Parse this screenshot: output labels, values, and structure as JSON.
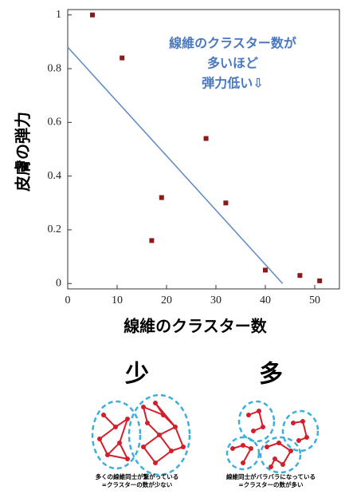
{
  "chart_data": {
    "type": "scatter",
    "x_label": "線維のクラスター数",
    "y_label": "皮膚の弾力",
    "annotation": [
      "線維のクラスター数が",
      "多いほど",
      "弾力低い⇩"
    ],
    "x": [
      5,
      11,
      17,
      19,
      28,
      32,
      40,
      47,
      51
    ],
    "values": [
      1.0,
      0.84,
      0.16,
      0.32,
      0.54,
      0.3,
      0.05,
      0.03,
      0.01
    ],
    "color": "#8b1a1a",
    "trendline": {
      "x": [
        0,
        43.5
      ],
      "values": [
        0.88,
        0
      ],
      "color": "#5a8ac6"
    },
    "xlim": [
      0,
      55
    ],
    "ylim": [
      -0.02,
      1.02
    ],
    "xticks": [
      0,
      10,
      20,
      30,
      40,
      50
    ],
    "yticks": [
      0,
      0.2,
      0.4,
      0.6,
      0.8,
      1
    ],
    "grid": false
  },
  "diagram": {
    "left": {
      "label": "少",
      "caption": [
        "多くの線維同士が繋がっている",
        "=クラスターの数が少ない"
      ]
    },
    "right": {
      "label": "多",
      "caption": [
        "線維同士がバラバラになっている",
        "=クラスターの数が多い"
      ]
    }
  }
}
